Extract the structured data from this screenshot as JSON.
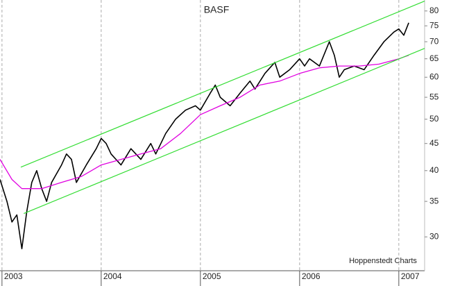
{
  "chart_data": {
    "type": "line",
    "title": "BASF",
    "annotation": "Hoppenstedt Charts",
    "log_scale": true,
    "grid": "x",
    "xlim": [
      2002.98,
      2007.26
    ],
    "xticks": [
      2003,
      2004,
      2005,
      2006,
      2007
    ],
    "ylim": [
      25.9,
      83.9
    ],
    "yticks": [
      30,
      35,
      40,
      45,
      50,
      55,
      60,
      65,
      70,
      75,
      80
    ],
    "series": [
      {
        "color": "#000000",
        "width": 1.6,
        "x": [
          2002.98,
          2003.05,
          2003.1,
          2003.15,
          2003.2,
          2003.25,
          2003.3,
          2003.35,
          2003.4,
          2003.45,
          2003.5,
          2003.6,
          2003.65,
          2003.7,
          2003.75,
          2003.85,
          2003.95,
          2004.0,
          2004.05,
          2004.1,
          2004.2,
          2004.3,
          2004.4,
          2004.5,
          2004.55,
          2004.65,
          2004.75,
          2004.85,
          2004.95,
          2005.0,
          2005.1,
          2005.15,
          2005.2,
          2005.3,
          2005.4,
          2005.5,
          2005.55,
          2005.65,
          2005.75,
          2005.8,
          2005.9,
          2006.0,
          2006.05,
          2006.1,
          2006.2,
          2006.3,
          2006.35,
          2006.4,
          2006.45,
          2006.55,
          2006.65,
          2006.75,
          2006.85,
          2006.95,
          2007.0,
          2007.05,
          2007.1
        ],
        "values": [
          38.5,
          35,
          32,
          33,
          28.5,
          33.5,
          38,
          40,
          37,
          35,
          38,
          41,
          43,
          42,
          38,
          41,
          44,
          46,
          45,
          43,
          41,
          44,
          42,
          45,
          43,
          47,
          50,
          52,
          53,
          52,
          56,
          58,
          55,
          53,
          56,
          59,
          57,
          61,
          64,
          60,
          62,
          65,
          63,
          65,
          63,
          70,
          66,
          60,
          62,
          63,
          62,
          66,
          70,
          73,
          74,
          72,
          76
        ]
      },
      {
        "color": "#e000e0",
        "width": 1.3,
        "x": [
          2002.98,
          2003.1,
          2003.2,
          2003.4,
          2003.6,
          2003.8,
          2004.0,
          2004.2,
          2004.4,
          2004.6,
          2004.8,
          2005.0,
          2005.2,
          2005.4,
          2005.6,
          2005.8,
          2006.0,
          2006.2,
          2006.4,
          2006.6,
          2006.8,
          2007.0,
          2007.1
        ],
        "values": [
          42,
          38.5,
          37,
          37,
          38,
          39,
          41,
          42,
          43,
          44,
          47,
          51,
          53,
          55,
          58,
          59,
          61,
          62.5,
          63,
          63,
          63.5,
          65,
          66
        ]
      },
      {
        "color": "#33dd33",
        "width": 1.2,
        "x": [
          2003.19,
          2007.26
        ],
        "values": [
          40.6,
          83.5
        ]
      },
      {
        "color": "#33dd33",
        "width": 1.2,
        "x": [
          2003.22,
          2007.26
        ],
        "values": [
          33.2,
          68
        ]
      }
    ]
  }
}
